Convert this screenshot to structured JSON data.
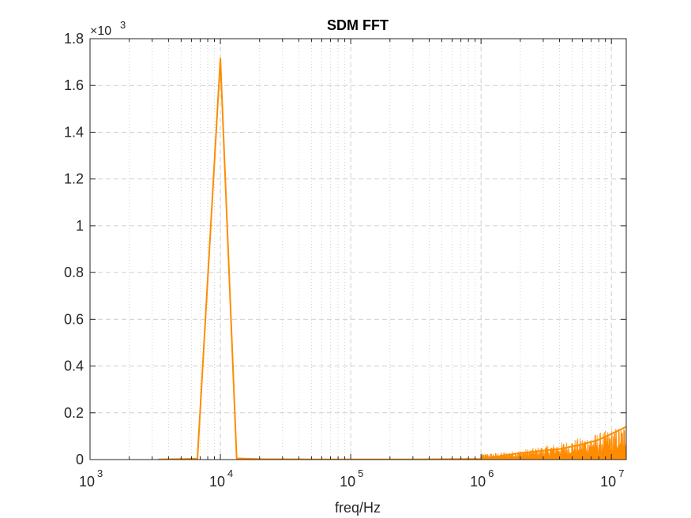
{
  "chart_data": {
    "type": "line",
    "title": "SDM FFT",
    "xlabel": "freq/Hz",
    "ylabel": "",
    "x_scale": "log",
    "xlim": [
      1000,
      13000000
    ],
    "ylim": [
      0,
      1800
    ],
    "y_multiplier_label": "×10",
    "y_multiplier_exponent": "3",
    "x_ticks": [
      {
        "base": "10",
        "exp": "3",
        "value": 1000
      },
      {
        "base": "10",
        "exp": "4",
        "value": 10000
      },
      {
        "base": "10",
        "exp": "5",
        "value": 100000
      },
      {
        "base": "10",
        "exp": "6",
        "value": 1000000
      },
      {
        "base": "10",
        "exp": "7",
        "value": 10000000
      }
    ],
    "y_ticks": [
      {
        "label": "0",
        "value": 0
      },
      {
        "label": "0.2",
        "value": 200
      },
      {
        "label": "0.4",
        "value": 400
      },
      {
        "label": "0.6",
        "value": 600
      },
      {
        "label": "0.8",
        "value": 800
      },
      {
        "label": "1",
        "value": 1000
      },
      {
        "label": "1.2",
        "value": 1200
      },
      {
        "label": "1.4",
        "value": 1400
      },
      {
        "label": "1.6",
        "value": 1600
      },
      {
        "label": "1.8",
        "value": 1800
      }
    ],
    "grid": true,
    "series": [
      {
        "color": "#FF8C00",
        "points": [
          [
            3333,
            1
          ],
          [
            6667,
            4
          ],
          [
            10000,
            1715
          ],
          [
            13333,
            5
          ],
          [
            20000,
            2
          ],
          [
            50000,
            1
          ],
          [
            100000,
            1
          ],
          [
            300000,
            1
          ],
          [
            600000,
            2
          ],
          [
            1000000,
            3
          ],
          [
            2000000,
            28
          ],
          [
            4000000,
            45
          ],
          [
            6000000,
            65
          ],
          [
            8000000,
            85
          ],
          [
            10000000,
            110
          ],
          [
            13000000,
            140
          ]
        ],
        "noise_floor": {
          "from_hz": 1000000,
          "to_hz": 13000000,
          "amplitude_start": 25,
          "amplitude_end": 150
        }
      }
    ]
  }
}
